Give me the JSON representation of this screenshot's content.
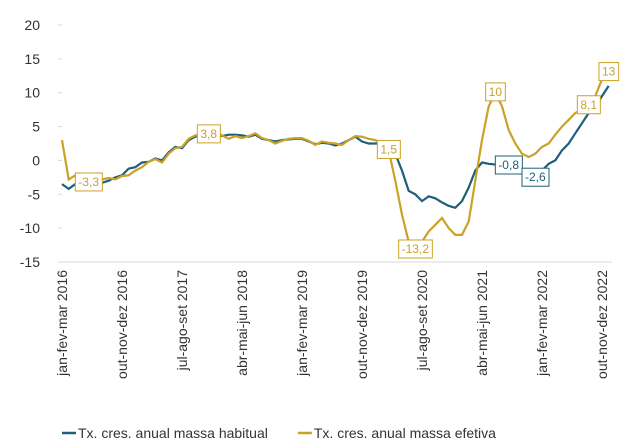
{
  "chart_data": {
    "type": "line",
    "categories": [
      "jan-fev-mar 2016",
      null,
      null,
      null,
      null,
      null,
      null,
      null,
      null,
      "out-nov-dez 2016",
      null,
      null,
      null,
      null,
      null,
      null,
      null,
      null,
      "jul-ago-set 2017",
      null,
      null,
      null,
      null,
      null,
      null,
      null,
      null,
      "abr-mai-jun 2018",
      null,
      null,
      null,
      null,
      null,
      null,
      null,
      null,
      "jan-fev-mar 2019",
      null,
      null,
      null,
      null,
      null,
      null,
      null,
      null,
      "out-nov-dez 2019",
      null,
      null,
      null,
      null,
      null,
      null,
      null,
      null,
      "jul-ago-set 2020",
      null,
      null,
      null,
      null,
      null,
      null,
      null,
      null,
      "abr-mai-jun 2021",
      null,
      null,
      null,
      null,
      null,
      null,
      null,
      null,
      "jan-fev-mar 2022",
      null,
      null,
      null,
      null,
      null,
      null,
      null,
      null,
      "out-nov-dez 2022",
      null
    ],
    "series": [
      {
        "name": "Tx. cres. anual massa habitual",
        "color": "#1f5f7a",
        "values": [
          -3.5,
          -4.2,
          -3.5,
          -3.0,
          -3.2,
          -3.5,
          -3.3,
          -3.0,
          -2.5,
          -2.2,
          -1.2,
          -1.0,
          -0.3,
          -0.2,
          0.3,
          0.0,
          1.2,
          2.0,
          1.8,
          3.0,
          3.5,
          3.8,
          3.8,
          4.0,
          3.6,
          3.8,
          3.8,
          3.7,
          3.5,
          3.8,
          3.2,
          3.0,
          2.8,
          3.0,
          3.1,
          3.2,
          3.2,
          2.8,
          2.4,
          2.6,
          2.5,
          2.2,
          2.5,
          3.0,
          3.5,
          2.8,
          2.5,
          2.5,
          2.5,
          2.0,
          1.0,
          -1.5,
          -4.5,
          -5.0,
          -6.0,
          -5.3,
          -5.6,
          -6.2,
          -6.7,
          -7.0,
          -6.0,
          -4.0,
          -1.5,
          -0.3,
          -0.5,
          -0.6,
          -0.7,
          -0.8,
          -0.8,
          -1.5,
          -2.2,
          -2.6,
          -1.5,
          -0.5,
          0.0,
          1.5,
          2.5,
          4.0,
          5.5,
          7.0,
          8.0,
          9.5,
          11.0
        ],
        "value_labels": [
          null,
          null,
          null,
          null,
          null,
          null,
          null,
          null,
          null,
          null,
          null,
          null,
          null,
          null,
          null,
          null,
          null,
          null,
          null,
          null,
          null,
          null,
          null,
          null,
          null,
          null,
          null,
          null,
          null,
          null,
          null,
          null,
          null,
          null,
          null,
          null,
          null,
          null,
          null,
          null,
          null,
          null,
          null,
          null,
          null,
          null,
          null,
          null,
          null,
          null,
          null,
          null,
          null,
          null,
          null,
          null,
          null,
          null,
          null,
          null,
          null,
          null,
          null,
          null,
          null,
          null,
          null,
          "-0,8",
          null,
          null,
          null,
          "-2,6",
          null,
          null,
          null,
          null,
          null,
          null,
          null,
          null,
          null,
          null,
          null
        ]
      },
      {
        "name": "Tx. cres. anual massa efetiva",
        "color": "#c9a227",
        "values": [
          3.0,
          -2.8,
          -2.2,
          -2.5,
          -3.3,
          -3.0,
          -2.8,
          -2.6,
          -2.8,
          -2.3,
          -2.2,
          -1.5,
          -1.0,
          -0.2,
          0.2,
          -0.3,
          1.0,
          1.8,
          2.0,
          3.2,
          3.7,
          3.9,
          3.8,
          4.2,
          3.7,
          3.2,
          3.6,
          3.3,
          3.6,
          4.0,
          3.3,
          3.0,
          2.5,
          2.9,
          3.2,
          3.3,
          3.3,
          2.9,
          2.3,
          2.8,
          2.6,
          2.5,
          2.3,
          3.0,
          3.6,
          3.5,
          3.2,
          3.0,
          2.5,
          1.5,
          -3.0,
          -8.0,
          -12.0,
          -13.2,
          -12.0,
          -10.5,
          -9.5,
          -8.5,
          -10.0,
          -11.0,
          -11.0,
          -9.0,
          -3.0,
          3.0,
          8.0,
          10.0,
          8.0,
          4.5,
          2.5,
          1.0,
          0.5,
          1.0,
          2.0,
          2.5,
          3.8,
          5.0,
          6.0,
          7.0,
          7.5,
          8.1,
          9.5,
          12.0,
          13.0
        ],
        "value_labels": [
          null,
          null,
          null,
          null,
          "-3,3",
          null,
          null,
          null,
          null,
          null,
          null,
          null,
          null,
          null,
          null,
          null,
          null,
          null,
          null,
          null,
          null,
          null,
          "3,8",
          null,
          null,
          null,
          null,
          null,
          null,
          null,
          null,
          null,
          null,
          null,
          null,
          null,
          null,
          null,
          null,
          null,
          null,
          null,
          null,
          null,
          null,
          null,
          null,
          null,
          null,
          "1,5",
          null,
          null,
          null,
          "-13,2",
          null,
          null,
          null,
          null,
          null,
          null,
          null,
          null,
          null,
          null,
          null,
          "10",
          null,
          null,
          null,
          null,
          null,
          null,
          null,
          null,
          null,
          null,
          null,
          null,
          null,
          "8,1",
          null,
          null,
          "13"
        ]
      }
    ],
    "ylim": [
      -15,
      20
    ],
    "yticks": [
      -15,
      -10,
      -5,
      0,
      5,
      10,
      15,
      20
    ]
  }
}
